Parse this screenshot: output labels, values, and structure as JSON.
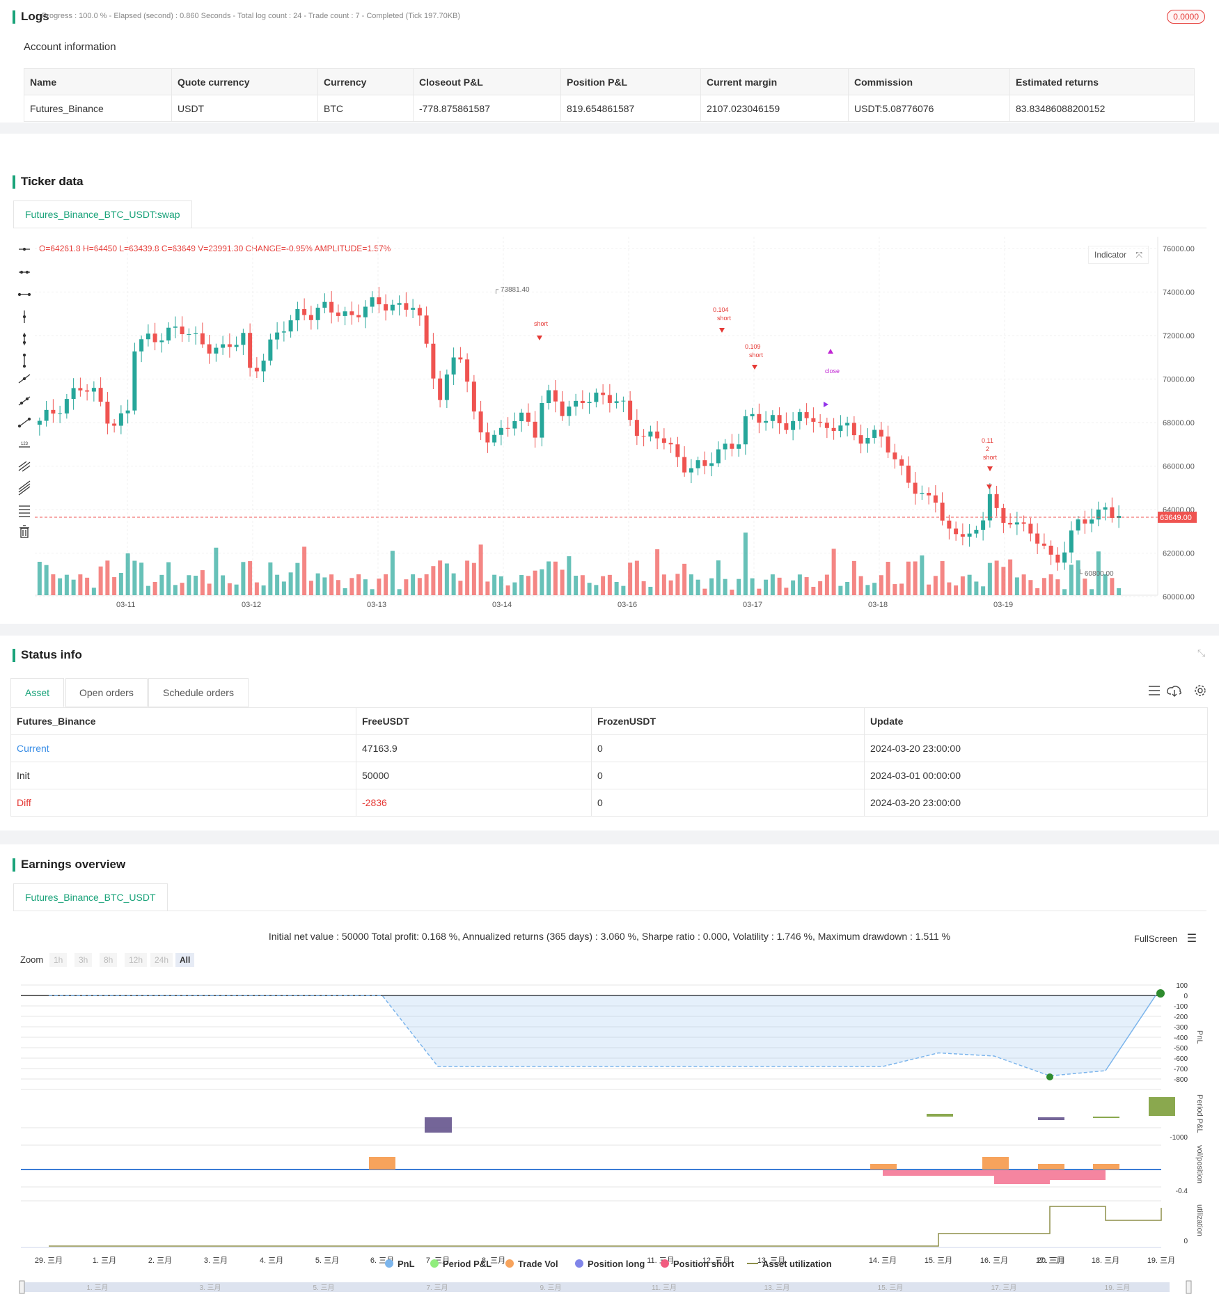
{
  "logs": {
    "title": "Logs",
    "summary": "Progress : 100.0 % - Elapsed (second) : 0.860  Seconds - Total log count : 24 - Trade count : 7 - Completed (Tick 197.70KB)",
    "badge": "0.0000"
  },
  "account": {
    "title": "Account information",
    "headers": [
      "Name",
      "Quote currency",
      "Currency",
      "Closeout P&L",
      "Position P&L",
      "Current margin",
      "Commission",
      "Estimated returns"
    ],
    "row": [
      "Futures_Binance",
      "USDT",
      "BTC",
      "-778.875861587",
      "819.654861587",
      "2107.023046159",
      "USDT:5.08776076",
      "83.83486088200152"
    ]
  },
  "ticker": {
    "title": "Ticker data",
    "tab": "Futures_Binance_BTC_USDT:swap",
    "ohlc": "O=64261.8 H=64450 L=63439.8 C=63649 V=23991.30 CHANGE=-0.95% AMPLITUDE=1.57%",
    "indicator_label": "Indicator",
    "last_price": "63649.00",
    "y_ticks": [
      "76000.00",
      "74000.00",
      "72000.00",
      "70000.00",
      "68000.00",
      "66000.00",
      "64000.00",
      "62000.00",
      "60000.00"
    ],
    "x_ticks": [
      "03-11",
      "03-12",
      "03-13",
      "03-14",
      "03-16",
      "03-17",
      "03-18",
      "03-19"
    ],
    "high_label": "73881.40",
    "low_label": "60800.00",
    "annotations": [
      {
        "text": "short",
        "kind": "short"
      },
      {
        "text": "0.104",
        "kind": "qty"
      },
      {
        "text": "0.109",
        "kind": "qty"
      },
      {
        "text": "0.11",
        "kind": "qty"
      },
      {
        "text": "2",
        "kind": "qty"
      },
      {
        "text": "close",
        "kind": "close"
      }
    ]
  },
  "status": {
    "title": "Status info",
    "tabs": [
      "Asset",
      "Open orders",
      "Schedule orders"
    ],
    "headers": [
      "Futures_Binance",
      "FreeUSDT",
      "FrozenUSDT",
      "Update"
    ],
    "rows": [
      {
        "name": "Current",
        "free": "47163.9",
        "frozen": "0",
        "update": "2024-03-20 23:00:00"
      },
      {
        "name": "Init",
        "free": "50000",
        "frozen": "0",
        "update": "2024-03-01 00:00:00"
      },
      {
        "name": "Diff",
        "free": "-2836",
        "frozen": "0",
        "update": "2024-03-20 23:00:00"
      }
    ]
  },
  "earnings": {
    "title": "Earnings overview",
    "tab": "Futures_Binance_BTC_USDT",
    "summary": "Initial net value : 50000 Total profit: 0.168 %, Annualized returns (365 days) : 3.060 %, Sharpe ratio : 0.000, Volatility : 1.746 %, Maximum drawdown : 1.511 %",
    "fullscreen": "FullScreen",
    "zoom_label": "Zoom",
    "zoom_options": [
      "1h",
      "3h",
      "8h",
      "12h",
      "24h",
      "All"
    ],
    "pnl_ticks": [
      "100",
      "0",
      "-100",
      "-200",
      "-300",
      "-400",
      "-500",
      "-600",
      "-700",
      "-800"
    ],
    "period_tick": "-1000",
    "vol_tick": "-0.4",
    "util_tick": "0",
    "axis_titles": [
      "PnL",
      "Period P&L",
      "vol/position",
      "utilization"
    ],
    "x_ticks": [
      "29. 三月",
      "1. 三月",
      "2. 三月",
      "3. 三月",
      "4. 三月",
      "5. 三月",
      "6. 三月",
      "7. 三月",
      "8. 三月",
      "11. 三月",
      "12. 三月",
      "13. 三月",
      "14. 三月",
      "15. 三月",
      "16. 三月",
      "17. 三月",
      "18. 三月",
      "19. 三月",
      "20. 三月"
    ],
    "legend": [
      {
        "label": "PnL",
        "color": "#7cb5ec"
      },
      {
        "label": "Period P&L",
        "color": "#90ed7d"
      },
      {
        "label": "Trade Vol",
        "color": "#f7a35c"
      },
      {
        "label": "Position long",
        "color": "#8085e9"
      },
      {
        "label": "Position short",
        "color": "#f15c80"
      },
      {
        "label": "Asset utilization",
        "color": "#8d8f4a"
      }
    ],
    "navigator_ticks": [
      "1. 三月",
      "3. 三月",
      "5. 三月",
      "7. 三月",
      "9. 三月",
      "11. 三月",
      "13. 三月",
      "15. 三月",
      "17. 三月",
      "19. 三月"
    ]
  },
  "colors": {
    "accent": "#1aa37a",
    "up": "#26a69a",
    "down": "#ef5350",
    "diff": "#e53935",
    "link": "#3a8ee6"
  }
}
